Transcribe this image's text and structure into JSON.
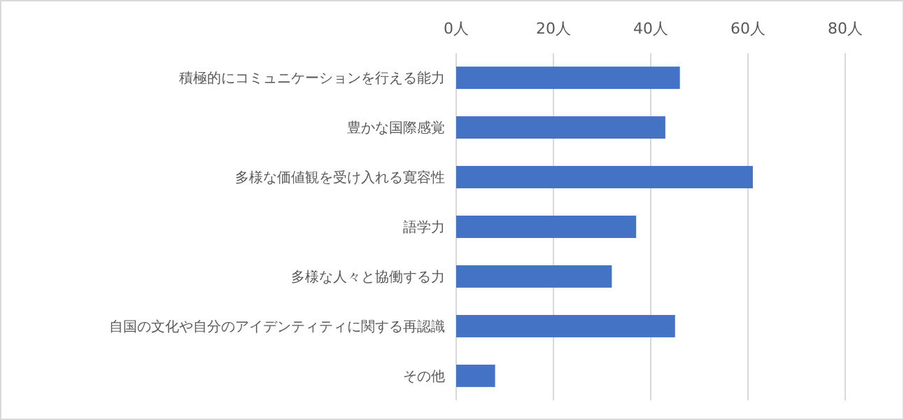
{
  "chart_data": {
    "type": "bar",
    "orientation": "horizontal",
    "categories": [
      "積極的にコミュニケーションを行える能力",
      "豊かな国際感覚",
      "多様な価値観を受け入れる寛容性",
      "語学力",
      "多様な人々と協働する力",
      "自国の文化や自分のアイデンティティに関する再認識",
      "その他"
    ],
    "values": [
      46,
      43,
      61,
      37,
      32,
      45,
      8
    ],
    "color": "#4472c4",
    "xlim": [
      0,
      80
    ],
    "xticks": [
      {
        "value": 0,
        "label": "0人"
      },
      {
        "value": 20,
        "label": "20人"
      },
      {
        "value": 40,
        "label": "40人"
      },
      {
        "value": 60,
        "label": "60人"
      },
      {
        "value": 80,
        "label": "80人"
      }
    ],
    "grid": "x"
  }
}
